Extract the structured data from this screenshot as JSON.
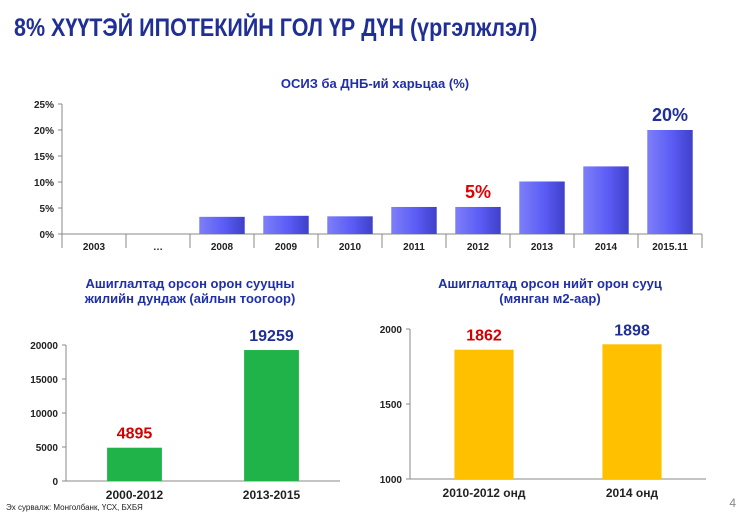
{
  "page": {
    "title": "8% ХҮҮТЭЙ ИПОТЕКИЙН ГОЛ ҮР ДҮН (үргэлжлэл)",
    "source": "Эх сурвалж: Монголбанк, ҮСХ, БХБЯ",
    "page_number": "4"
  },
  "colors": {
    "blue": "#5a5cf5",
    "green": "#1fb34a",
    "yellow": "#ffc000",
    "title": "#1f2f96",
    "red": "#e00000"
  },
  "chart_data": [
    {
      "type": "bar",
      "title": "ОСИЗ ба ДНБ-ий харьцаа (%)",
      "categories": [
        "2003",
        "…",
        "2008",
        "2009",
        "2010",
        "2011",
        "2012",
        "2013",
        "2014",
        "2015.11"
      ],
      "values": [
        0,
        0,
        3.3,
        3.5,
        3.4,
        5.2,
        5.2,
        10.1,
        13.0,
        20.0
      ],
      "ylim": [
        0,
        25
      ],
      "yticks": [
        "0%",
        "5%",
        "10%",
        "15%",
        "20%",
        "25%"
      ],
      "data_labels": [
        {
          "index": 6,
          "text": "5%"
        },
        {
          "index": 9,
          "text": "20%"
        }
      ]
    },
    {
      "type": "bar",
      "title_lines": [
        "Ашиглалтад орсон орон сууцны",
        "жилийн дундаж (айлын тоогоор)"
      ],
      "categories": [
        "2000-2012",
        "2013-2015"
      ],
      "values": [
        4895,
        19259
      ],
      "ylim": [
        0,
        20000
      ],
      "yticks": [
        "0",
        "5000",
        "10000",
        "15000",
        "20000"
      ],
      "data_labels": [
        "4895",
        "19259"
      ]
    },
    {
      "type": "bar",
      "title_lines": [
        "Ашиглалтад орсон нийт орон сууц",
        "(мянган м2-аар)"
      ],
      "categories": [
        "2010-2012 онд",
        "2014 онд"
      ],
      "values": [
        1862,
        1898
      ],
      "ylim": [
        1000,
        2000
      ],
      "yticks": [
        "1000",
        "1500",
        "2000"
      ],
      "data_labels": [
        "1862",
        "1898"
      ]
    }
  ]
}
